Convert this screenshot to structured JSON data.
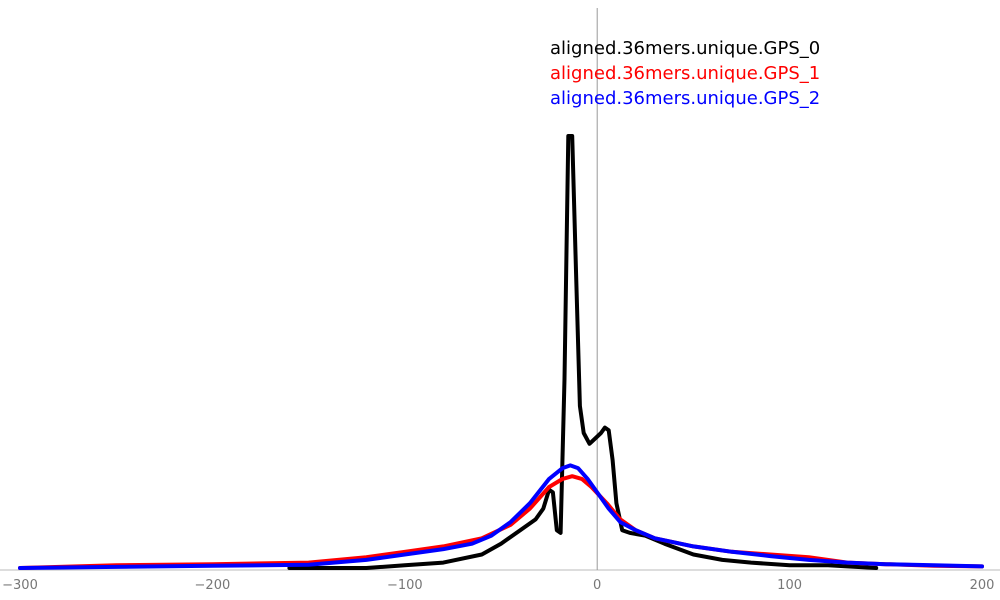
{
  "chart_data": {
    "type": "line",
    "title": "",
    "xlabel": "",
    "ylabel": "",
    "xlim": [
      -300,
      200
    ],
    "ylim": [
      0,
      1
    ],
    "grid": false,
    "legend_placement": "top-right",
    "x_ticks": [
      -300,
      -200,
      -100,
      0,
      100,
      200
    ],
    "x_tick_labels": [
      "−300",
      "−200",
      "−100",
      "0",
      "100",
      "200"
    ],
    "series": [
      {
        "name": "aligned.36mers.unique.GPS_0",
        "color": "#000000",
        "points": [
          [
            -160,
            0.0
          ],
          [
            -120,
            0.0
          ],
          [
            -100,
            0.005
          ],
          [
            -80,
            0.01
          ],
          [
            -60,
            0.025
          ],
          [
            -50,
            0.045
          ],
          [
            -40,
            0.07
          ],
          [
            -32,
            0.09
          ],
          [
            -28,
            0.11
          ],
          [
            -25,
            0.145
          ],
          [
            -23,
            0.14
          ],
          [
            -21,
            0.07
          ],
          [
            -19,
            0.065
          ],
          [
            -17,
            0.35
          ],
          [
            -15,
            0.8
          ],
          [
            -13,
            0.8
          ],
          [
            -11,
            0.55
          ],
          [
            -9,
            0.3
          ],
          [
            -7,
            0.25
          ],
          [
            -4,
            0.23
          ],
          [
            -1,
            0.24
          ],
          [
            2,
            0.25
          ],
          [
            4,
            0.26
          ],
          [
            6,
            0.255
          ],
          [
            8,
            0.2
          ],
          [
            10,
            0.12
          ],
          [
            13,
            0.07
          ],
          [
            17,
            0.065
          ],
          [
            25,
            0.06
          ],
          [
            35,
            0.045
          ],
          [
            50,
            0.025
          ],
          [
            65,
            0.015
          ],
          [
            80,
            0.01
          ],
          [
            100,
            0.005
          ],
          [
            120,
            0.005
          ],
          [
            130,
            0.003
          ],
          [
            145,
            0.0
          ]
        ]
      },
      {
        "name": "aligned.36mers.unique.GPS_1",
        "color": "#ff0000",
        "points": [
          [
            -300,
            0.0
          ],
          [
            -250,
            0.005
          ],
          [
            -200,
            0.007
          ],
          [
            -150,
            0.01
          ],
          [
            -120,
            0.02
          ],
          [
            -100,
            0.03
          ],
          [
            -80,
            0.04
          ],
          [
            -60,
            0.055
          ],
          [
            -45,
            0.08
          ],
          [
            -35,
            0.11
          ],
          [
            -25,
            0.15
          ],
          [
            -18,
            0.165
          ],
          [
            -13,
            0.17
          ],
          [
            -8,
            0.165
          ],
          [
            -3,
            0.15
          ],
          [
            5,
            0.12
          ],
          [
            12,
            0.09
          ],
          [
            20,
            0.07
          ],
          [
            30,
            0.055
          ],
          [
            50,
            0.04
          ],
          [
            70,
            0.03
          ],
          [
            90,
            0.025
          ],
          [
            110,
            0.02
          ],
          [
            130,
            0.01
          ],
          [
            150,
            0.007
          ],
          [
            175,
            0.004
          ],
          [
            200,
            0.003
          ]
        ]
      },
      {
        "name": "aligned.36mers.unique.GPS_2",
        "color": "#0000ff",
        "points": [
          [
            -300,
            0.0
          ],
          [
            -250,
            0.002
          ],
          [
            -200,
            0.004
          ],
          [
            -150,
            0.006
          ],
          [
            -120,
            0.015
          ],
          [
            -100,
            0.025
          ],
          [
            -80,
            0.035
          ],
          [
            -65,
            0.045
          ],
          [
            -55,
            0.06
          ],
          [
            -45,
            0.085
          ],
          [
            -35,
            0.12
          ],
          [
            -25,
            0.165
          ],
          [
            -18,
            0.185
          ],
          [
            -14,
            0.19
          ],
          [
            -10,
            0.185
          ],
          [
            -5,
            0.165
          ],
          [
            0,
            0.14
          ],
          [
            6,
            0.11
          ],
          [
            12,
            0.085
          ],
          [
            20,
            0.07
          ],
          [
            30,
            0.055
          ],
          [
            50,
            0.04
          ],
          [
            70,
            0.03
          ],
          [
            90,
            0.022
          ],
          [
            110,
            0.015
          ],
          [
            130,
            0.01
          ],
          [
            150,
            0.007
          ],
          [
            175,
            0.005
          ],
          [
            200,
            0.003
          ]
        ]
      }
    ]
  }
}
